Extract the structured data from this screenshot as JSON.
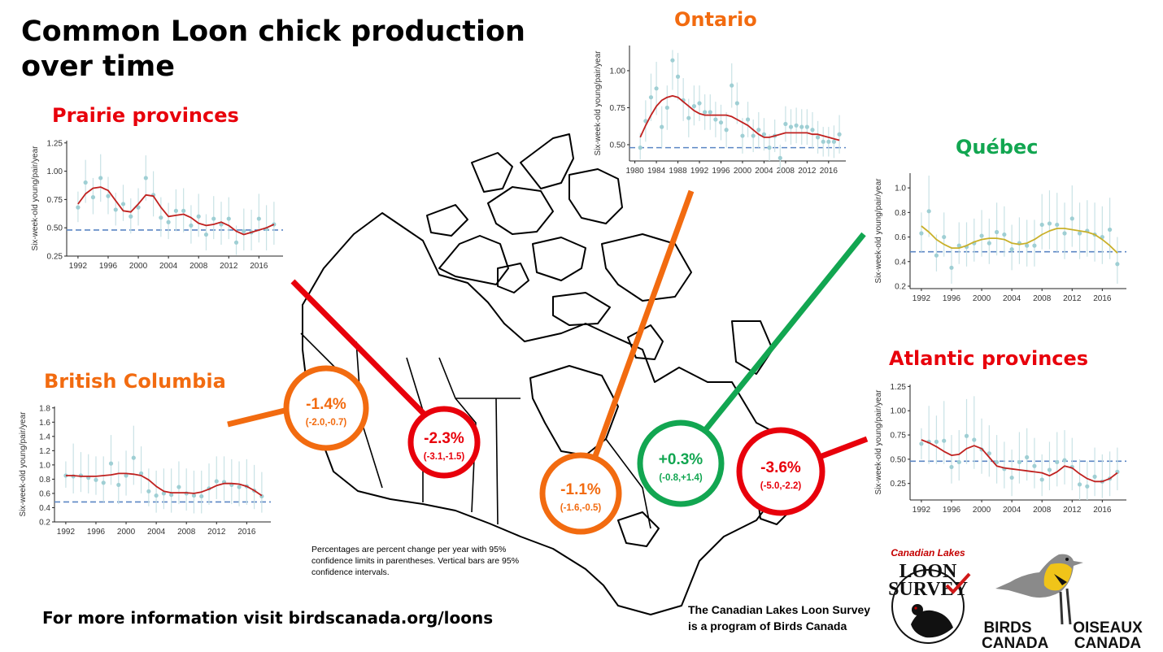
{
  "title": {
    "line1": "Common Loon chick production",
    "line2": "over time"
  },
  "colors": {
    "decline": "#e8000b",
    "moderate": "#f26b10",
    "increase": "#12a651",
    "trend_red": "#c0211f",
    "trend_yellow": "#c9b02a",
    "points": "#9fcfd4",
    "ref_line": "#5b86c4"
  },
  "footnote": "Percentages are percent change per year with 95% confidence limits in parentheses. Vertical bars are 95% confidence intervals.",
  "more_info": "For more information visit birdscanada.org/loons",
  "program_note": {
    "line1": "The Canadian Lakes Loon Survey",
    "line2": "is a program of Birds Canada"
  },
  "logos": {
    "loon_survey": {
      "arc": "Canadian Lakes",
      "word1": "LOON",
      "word2": "SURVEY"
    },
    "birds_canada": {
      "en1": "BIRDS",
      "en2": "CANADA",
      "fr1": "OISEAUX",
      "fr2": "CANADA"
    }
  },
  "badges": [
    {
      "id": "bc",
      "value": "-1.4%",
      "ci": "(-2.0,-0.7)",
      "tone": "moderate"
    },
    {
      "id": "prairie",
      "value": "-2.3%",
      "ci": "(-3.1,-1.5)",
      "tone": "decline"
    },
    {
      "id": "ontario",
      "value": "-1.1%",
      "ci": "(-1.6,-0.5)",
      "tone": "moderate"
    },
    {
      "id": "quebec",
      "value": "+0.3%",
      "ci": "(-0.8,+1.4)",
      "tone": "increase"
    },
    {
      "id": "atlantic",
      "value": "-3.6%",
      "ci": "(-5.0,-2.2)",
      "tone": "decline"
    }
  ],
  "chart_data": [
    {
      "id": "prairie",
      "region_title": "Prairie provinces",
      "title_tone": "decline",
      "type": "scatter",
      "ylabel": "Six-week-old young/pair/year",
      "xlim": [
        1990.5,
        2019.2
      ],
      "ylim": [
        0.25,
        1.27
      ],
      "yticks": [
        0.25,
        0.5,
        0.75,
        1.0
      ],
      "ytick_labels": [
        "0.25",
        "0.50",
        "0.75",
        "1.00"
      ],
      "yticks_extra": [
        1.25
      ],
      "ytick_labels_extra": [
        "1.25"
      ],
      "xticks": [
        1992,
        1996,
        2000,
        2004,
        2008,
        2012,
        2016
      ],
      "xtick_labels": [
        "1992",
        "1996",
        "2000",
        "2004",
        "2008",
        "2012",
        "2016"
      ],
      "reference_y": 0.48,
      "trend_color": "trend_red",
      "x": [
        1992,
        1993,
        1994,
        1995,
        1996,
        1997,
        1998,
        1999,
        2000,
        2001,
        2002,
        2003,
        2004,
        2005,
        2006,
        2007,
        2008,
        2009,
        2010,
        2011,
        2012,
        2013,
        2014,
        2015,
        2016,
        2017,
        2018
      ],
      "y": [
        0.68,
        0.9,
        0.77,
        0.94,
        0.78,
        0.66,
        0.71,
        0.6,
        0.68,
        0.94,
        0.79,
        0.59,
        0.55,
        0.65,
        0.65,
        0.52,
        0.6,
        0.44,
        0.58,
        0.53,
        0.58,
        0.37,
        0.47,
        0.46,
        0.58,
        0.49,
        0.53
      ],
      "ci_low": [
        0.55,
        0.72,
        0.62,
        0.73,
        0.62,
        0.52,
        0.56,
        0.45,
        0.52,
        0.74,
        0.6,
        0.42,
        0.4,
        0.47,
        0.46,
        0.36,
        0.42,
        0.3,
        0.4,
        0.35,
        0.4,
        0.26,
        0.3,
        0.3,
        0.37,
        0.3,
        0.35
      ],
      "ci_high": [
        0.82,
        1.1,
        0.94,
        1.15,
        0.95,
        0.81,
        0.88,
        0.76,
        0.85,
        1.14,
        1.0,
        0.77,
        0.72,
        0.84,
        0.85,
        0.7,
        0.8,
        0.62,
        0.78,
        0.73,
        0.77,
        0.52,
        0.67,
        0.66,
        0.8,
        0.7,
        0.73
      ],
      "trend": [
        0.71,
        0.8,
        0.85,
        0.86,
        0.83,
        0.74,
        0.65,
        0.64,
        0.71,
        0.79,
        0.78,
        0.68,
        0.6,
        0.61,
        0.62,
        0.59,
        0.54,
        0.52,
        0.53,
        0.55,
        0.52,
        0.47,
        0.44,
        0.46,
        0.48,
        0.5,
        0.53
      ]
    },
    {
      "id": "bc",
      "region_title": "British Columbia",
      "title_tone": "moderate",
      "type": "scatter",
      "ylabel": "Six-week-old young/pair/year",
      "xlim": [
        1990.5,
        2019.2
      ],
      "ylim": [
        0.2,
        1.82
      ],
      "yticks": [
        0.2,
        0.4,
        0.6,
        0.8,
        1.0,
        1.2,
        1.4,
        1.6,
        1.8
      ],
      "ytick_labels": [
        "0.2",
        "0.4",
        "0.6",
        "0.8",
        "1.0",
        "1.2",
        "1.4",
        "1.6",
        "1.8"
      ],
      "xticks": [
        1992,
        1996,
        2000,
        2004,
        2008,
        2012,
        2016
      ],
      "xtick_labels": [
        "1992",
        "1996",
        "2000",
        "2004",
        "2008",
        "2012",
        "2016"
      ],
      "reference_y": 0.48,
      "trend_color": "trend_red",
      "x": [
        1992,
        1993,
        1994,
        1995,
        1996,
        1997,
        1998,
        1999,
        2000,
        2001,
        2002,
        2003,
        2004,
        2005,
        2006,
        2007,
        2008,
        2009,
        2010,
        2011,
        2012,
        2013,
        2014,
        2015,
        2016,
        2017,
        2018
      ],
      "y": [
        0.85,
        0.84,
        0.85,
        0.82,
        0.79,
        0.75,
        1.02,
        0.72,
        0.85,
        1.1,
        0.88,
        0.63,
        0.57,
        0.6,
        0.58,
        0.69,
        0.6,
        0.57,
        0.56,
        0.67,
        0.77,
        0.76,
        0.72,
        0.69,
        0.7,
        0.64,
        0.56
      ],
      "ci_low": [
        0.68,
        0.6,
        0.62,
        0.6,
        0.58,
        0.48,
        0.72,
        0.45,
        0.57,
        0.72,
        0.6,
        0.42,
        0.33,
        0.38,
        0.33,
        0.45,
        0.36,
        0.32,
        0.32,
        0.44,
        0.52,
        0.5,
        0.45,
        0.42,
        0.44,
        0.38,
        0.33
      ],
      "ci_high": [
        1.05,
        1.3,
        1.18,
        1.15,
        1.12,
        1.12,
        1.42,
        1.05,
        1.2,
        1.55,
        1.26,
        0.95,
        0.92,
        0.95,
        0.95,
        1.05,
        0.95,
        0.92,
        0.92,
        1.02,
        1.12,
        1.12,
        1.08,
        1.05,
        1.08,
        1.0,
        0.9
      ],
      "trend": [
        0.85,
        0.85,
        0.84,
        0.84,
        0.84,
        0.85,
        0.86,
        0.88,
        0.88,
        0.87,
        0.85,
        0.79,
        0.7,
        0.63,
        0.61,
        0.61,
        0.61,
        0.6,
        0.62,
        0.66,
        0.71,
        0.74,
        0.74,
        0.73,
        0.7,
        0.64,
        0.57
      ]
    },
    {
      "id": "ontario",
      "region_title": "Ontario",
      "title_tone": "moderate",
      "type": "scatter",
      "ylabel": "Six-week-old young/pair/year",
      "xlim": [
        1979,
        2019.2
      ],
      "ylim": [
        0.39,
        1.17
      ],
      "yticks": [
        0.5,
        0.75,
        1.0
      ],
      "ytick_labels": [
        "0.50",
        "0.75",
        "1.00"
      ],
      "xticks": [
        1980,
        1984,
        1988,
        1992,
        1996,
        2000,
        2004,
        2008,
        2012,
        2016
      ],
      "xtick_labels": [
        "1980",
        "1984",
        "1988",
        "1992",
        "1996",
        "2000",
        "2004",
        "2008",
        "2012",
        "2016"
      ],
      "reference_y": 0.48,
      "trend_color": "trend_red",
      "x": [
        1981,
        1982,
        1983,
        1984,
        1985,
        1986,
        1987,
        1988,
        1989,
        1990,
        1991,
        1992,
        1993,
        1994,
        1995,
        1996,
        1997,
        1998,
        1999,
        2000,
        2001,
        2002,
        2003,
        2004,
        2005,
        2006,
        2007,
        2008,
        2009,
        2010,
        2011,
        2012,
        2013,
        2014,
        2015,
        2016,
        2017,
        2018
      ],
      "y": [
        0.48,
        0.66,
        0.82,
        0.88,
        0.62,
        0.75,
        1.07,
        0.96,
        0.8,
        0.68,
        0.76,
        0.78,
        0.72,
        0.72,
        0.67,
        0.65,
        0.6,
        0.9,
        0.78,
        0.56,
        0.67,
        0.56,
        0.6,
        0.57,
        0.48,
        0.56,
        0.41,
        0.64,
        0.62,
        0.63,
        0.62,
        0.62,
        0.6,
        0.55,
        0.52,
        0.52,
        0.52,
        0.57
      ],
      "ci_low": [
        0.4,
        0.52,
        0.66,
        0.7,
        0.48,
        0.6,
        0.87,
        0.8,
        0.66,
        0.55,
        0.63,
        0.66,
        0.6,
        0.6,
        0.55,
        0.53,
        0.48,
        0.75,
        0.64,
        0.44,
        0.55,
        0.45,
        0.48,
        0.46,
        0.39,
        0.45,
        0.33,
        0.52,
        0.5,
        0.51,
        0.5,
        0.5,
        0.48,
        0.44,
        0.42,
        0.42,
        0.41,
        0.44
      ],
      "ci_high": [
        0.58,
        0.8,
        0.98,
        1.06,
        0.76,
        0.9,
        1.14,
        1.12,
        0.95,
        0.81,
        0.9,
        0.9,
        0.84,
        0.84,
        0.79,
        0.77,
        0.72,
        1.05,
        0.92,
        0.68,
        0.79,
        0.67,
        0.72,
        0.68,
        0.57,
        0.67,
        0.5,
        0.76,
        0.74,
        0.75,
        0.74,
        0.74,
        0.72,
        0.66,
        0.62,
        0.62,
        0.63,
        0.7
      ],
      "trend": [
        0.55,
        0.63,
        0.7,
        0.76,
        0.8,
        0.82,
        0.83,
        0.82,
        0.79,
        0.76,
        0.73,
        0.71,
        0.7,
        0.7,
        0.7,
        0.7,
        0.7,
        0.69,
        0.67,
        0.65,
        0.63,
        0.6,
        0.57,
        0.55,
        0.55,
        0.56,
        0.57,
        0.58,
        0.58,
        0.58,
        0.58,
        0.58,
        0.57,
        0.57,
        0.56,
        0.55,
        0.54,
        0.53
      ]
    },
    {
      "id": "quebec",
      "region_title": "Québec",
      "title_tone": "increase",
      "type": "scatter",
      "ylabel": "Six-week-old young/pair/year",
      "xlim": [
        1990.5,
        2019.2
      ],
      "ylim": [
        0.18,
        1.12
      ],
      "yticks": [
        0.2,
        0.4,
        0.6,
        0.8,
        1.0
      ],
      "ytick_labels": [
        "0.2",
        "0.4",
        "0.6",
        "0.8",
        "1.0"
      ],
      "xticks": [
        1992,
        1996,
        2000,
        2004,
        2008,
        2012,
        2016
      ],
      "xtick_labels": [
        "1992",
        "1996",
        "2000",
        "2004",
        "2008",
        "2012",
        "2016"
      ],
      "reference_y": 0.48,
      "trend_color": "trend_yellow",
      "x": [
        1992,
        1993,
        1994,
        1995,
        1996,
        1997,
        1998,
        1999,
        2000,
        2001,
        2002,
        2003,
        2004,
        2005,
        2006,
        2007,
        2008,
        2009,
        2010,
        2011,
        2012,
        2013,
        2014,
        2015,
        2016,
        2017,
        2018
      ],
      "y": [
        0.63,
        0.81,
        0.45,
        0.6,
        0.35,
        0.53,
        0.52,
        0.55,
        0.61,
        0.55,
        0.64,
        0.62,
        0.5,
        0.55,
        0.53,
        0.53,
        0.7,
        0.71,
        0.7,
        0.63,
        0.75,
        0.63,
        0.65,
        0.62,
        0.6,
        0.66,
        0.38
      ],
      "ci_low": [
        0.48,
        0.6,
        0.32,
        0.44,
        0.22,
        0.38,
        0.36,
        0.4,
        0.44,
        0.38,
        0.45,
        0.44,
        0.33,
        0.38,
        0.36,
        0.36,
        0.5,
        0.5,
        0.48,
        0.42,
        0.52,
        0.42,
        0.44,
        0.4,
        0.38,
        0.42,
        0.22
      ],
      "ci_high": [
        0.8,
        1.1,
        0.62,
        0.8,
        0.52,
        0.72,
        0.72,
        0.75,
        0.82,
        0.75,
        0.88,
        0.85,
        0.7,
        0.76,
        0.74,
        0.74,
        0.95,
        0.98,
        0.96,
        0.88,
        1.02,
        0.88,
        0.9,
        0.88,
        0.85,
        0.92,
        0.6
      ],
      "trend": [
        0.69,
        0.64,
        0.58,
        0.54,
        0.51,
        0.51,
        0.53,
        0.56,
        0.58,
        0.59,
        0.59,
        0.58,
        0.55,
        0.54,
        0.55,
        0.58,
        0.62,
        0.65,
        0.67,
        0.67,
        0.66,
        0.65,
        0.64,
        0.62,
        0.58,
        0.53,
        0.47
      ]
    },
    {
      "id": "atlantic",
      "region_title": "Atlantic provinces",
      "title_tone": "decline",
      "type": "scatter",
      "ylabel": "Six-week-old young/pair/year",
      "xlim": [
        1990.5,
        2019.2
      ],
      "ylim": [
        0.08,
        1.27
      ],
      "yticks": [
        0.25,
        0.5,
        0.75,
        1.0,
        1.25
      ],
      "ytick_labels": [
        "0.25",
        "0.50",
        "0.75",
        "1.00",
        "1.25"
      ],
      "xticks": [
        1992,
        1996,
        2000,
        2004,
        2008,
        2012,
        2016
      ],
      "xtick_labels": [
        "1992",
        "1996",
        "2000",
        "2004",
        "2008",
        "2012",
        "2016"
      ],
      "reference_y": 0.48,
      "trend_color": "trend_red",
      "x": [
        1992,
        1993,
        1994,
        1995,
        1996,
        1997,
        1998,
        1999,
        2000,
        2001,
        2002,
        2003,
        2004,
        2005,
        2006,
        2007,
        2008,
        2009,
        2010,
        2011,
        2012,
        2013,
        2014,
        2015,
        2016,
        2017,
        2018
      ],
      "y": [
        0.66,
        0.68,
        0.68,
        0.69,
        0.42,
        0.47,
        0.74,
        0.7,
        0.6,
        0.56,
        0.47,
        0.4,
        0.31,
        0.47,
        0.52,
        0.43,
        0.29,
        0.39,
        0.47,
        0.49,
        0.42,
        0.24,
        0.22,
        0.32,
        0.27,
        0.3,
        0.37
      ],
      "ci_low": [
        0.5,
        0.45,
        0.45,
        0.45,
        0.25,
        0.28,
        0.45,
        0.4,
        0.35,
        0.32,
        0.25,
        0.2,
        0.12,
        0.25,
        0.28,
        0.2,
        0.12,
        0.18,
        0.22,
        0.24,
        0.18,
        0.08,
        0.08,
        0.12,
        0.1,
        0.12,
        0.18
      ],
      "ci_high": [
        0.82,
        1.05,
        0.95,
        1.1,
        0.75,
        0.8,
        1.12,
        1.15,
        0.92,
        0.85,
        0.75,
        0.68,
        0.6,
        0.78,
        0.82,
        0.72,
        0.55,
        0.68,
        0.78,
        0.8,
        0.72,
        0.5,
        0.48,
        0.62,
        0.55,
        0.58,
        0.62
      ],
      "trend": [
        0.7,
        0.67,
        0.63,
        0.58,
        0.54,
        0.55,
        0.61,
        0.64,
        0.61,
        0.52,
        0.43,
        0.41,
        0.4,
        0.39,
        0.38,
        0.37,
        0.36,
        0.33,
        0.37,
        0.43,
        0.41,
        0.35,
        0.3,
        0.27,
        0.27,
        0.3,
        0.36
      ]
    }
  ]
}
